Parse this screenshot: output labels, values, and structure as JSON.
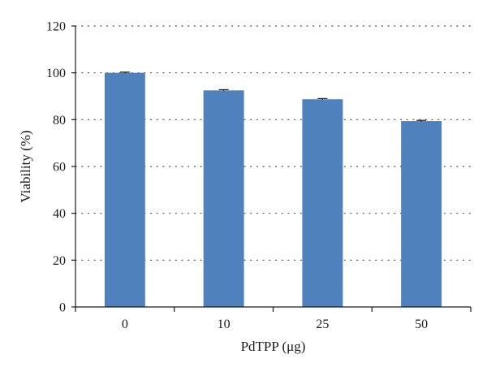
{
  "chart_data": {
    "type": "bar",
    "title": "",
    "xlabel": "PdTPP (μg)",
    "ylabel": "Viability (%)",
    "categories": [
      "0",
      "10",
      "25",
      "50"
    ],
    "values": [
      100,
      92.5,
      88.7,
      79.4
    ],
    "errors": [
      0.3,
      0.3,
      0.3,
      0.3
    ],
    "ylim": [
      0,
      120
    ],
    "yticks": [
      0,
      20,
      40,
      60,
      80,
      100,
      120
    ],
    "grid": true,
    "legend": "none",
    "bar_color": "#4f81bd",
    "error_color": "#1a1a1a"
  }
}
